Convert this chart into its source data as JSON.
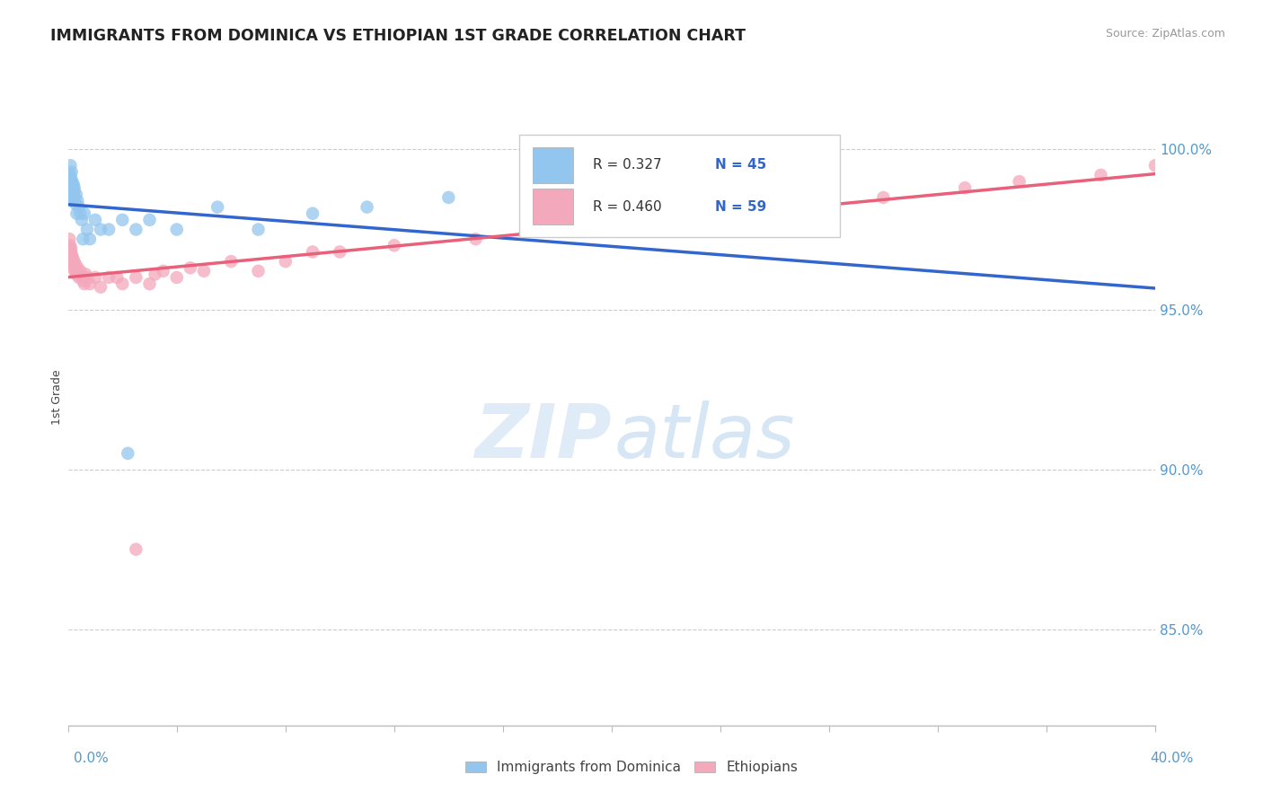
{
  "title": "IMMIGRANTS FROM DOMINICA VS ETHIOPIAN 1ST GRADE CORRELATION CHART",
  "source": "Source: ZipAtlas.com",
  "ylabel": "1st Grade",
  "ytick_values": [
    85.0,
    90.0,
    95.0,
    100.0
  ],
  "xmin": 0.0,
  "xmax": 40.0,
  "ymin": 82.0,
  "ymax": 102.5,
  "blue_color": "#93C6EE",
  "pink_color": "#F4A8BC",
  "blue_line_color": "#3366CC",
  "pink_line_color": "#E8607A",
  "legend_label_blue": "Immigrants from Dominica",
  "legend_label_pink": "Ethiopians",
  "blue_r": "0.327",
  "blue_n": "45",
  "pink_r": "0.460",
  "pink_n": "59",
  "blue_x": [
    0.05,
    0.07,
    0.08,
    0.09,
    0.1,
    0.1,
    0.11,
    0.12,
    0.13,
    0.14,
    0.15,
    0.16,
    0.18,
    0.2,
    0.22,
    0.25,
    0.28,
    0.3,
    0.35,
    0.4,
    0.45,
    0.5,
    0.6,
    0.7,
    0.8,
    1.0,
    1.2,
    1.5,
    2.0,
    2.5,
    3.0,
    4.0,
    5.5,
    7.0,
    9.0,
    11.0,
    14.0,
    0.06,
    0.09,
    0.13,
    0.17,
    0.23,
    0.32,
    0.55,
    2.2
  ],
  "blue_y": [
    99.0,
    98.8,
    99.2,
    99.5,
    98.5,
    99.0,
    99.1,
    98.7,
    99.3,
    98.9,
    99.0,
    98.6,
    98.8,
    98.9,
    98.7,
    98.5,
    98.3,
    98.6,
    98.4,
    98.2,
    98.0,
    97.8,
    98.0,
    97.5,
    97.2,
    97.8,
    97.5,
    97.5,
    97.8,
    97.5,
    97.8,
    97.5,
    98.2,
    97.5,
    98.0,
    98.2,
    98.5,
    99.1,
    98.6,
    99.0,
    98.4,
    98.8,
    98.0,
    97.2,
    90.5
  ],
  "pink_x": [
    0.05,
    0.07,
    0.08,
    0.09,
    0.1,
    0.11,
    0.12,
    0.14,
    0.16,
    0.18,
    0.2,
    0.22,
    0.25,
    0.28,
    0.3,
    0.35,
    0.4,
    0.45,
    0.5,
    0.6,
    0.7,
    0.8,
    1.0,
    1.2,
    1.5,
    2.0,
    2.5,
    3.0,
    3.5,
    4.0,
    5.0,
    6.0,
    7.0,
    8.0,
    10.0,
    12.0,
    15.0,
    18.0,
    22.0,
    25.0,
    28.0,
    30.0,
    33.0,
    35.0,
    38.0,
    40.0,
    0.06,
    0.13,
    0.32,
    0.55,
    1.8,
    4.5,
    9.0,
    20.0,
    26.0,
    0.09,
    0.17,
    0.65,
    3.2
  ],
  "pink_y": [
    97.2,
    96.8,
    97.0,
    96.5,
    96.8,
    96.9,
    96.5,
    96.7,
    96.4,
    96.6,
    96.3,
    96.5,
    96.2,
    96.4,
    96.1,
    96.3,
    96.0,
    96.2,
    96.0,
    95.8,
    96.0,
    95.8,
    96.0,
    95.7,
    96.0,
    95.8,
    96.0,
    95.8,
    96.2,
    96.0,
    96.2,
    96.5,
    96.2,
    96.5,
    96.8,
    97.0,
    97.2,
    97.5,
    97.8,
    98.0,
    98.2,
    98.5,
    98.8,
    99.0,
    99.2,
    99.5,
    96.9,
    96.6,
    96.2,
    95.9,
    96.0,
    96.3,
    96.8,
    97.8,
    98.2,
    96.7,
    96.4,
    96.1,
    96.1
  ],
  "pink_outlier_x": 2.5,
  "pink_outlier_y": 87.5
}
